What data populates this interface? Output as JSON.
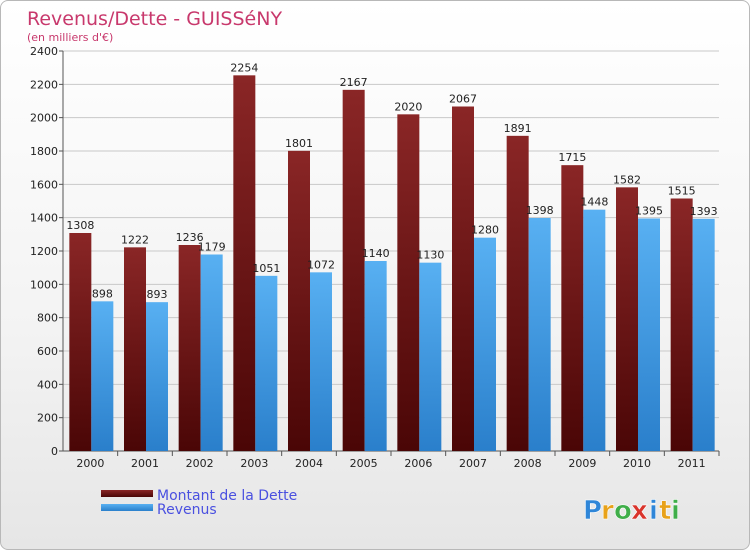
{
  "chart_data": {
    "type": "bar",
    "title": "Revenus/Dette - GUISSéNY",
    "subtitle": "(en milliers d'€)",
    "categories": [
      "2000",
      "2001",
      "2002",
      "2003",
      "2004",
      "2005",
      "2006",
      "2007",
      "2008",
      "2009",
      "2010",
      "2011"
    ],
    "series": [
      {
        "name": "Montant de la Dette",
        "color": "#7a1a1a",
        "values": [
          1308,
          1222,
          1236,
          2254,
          1801,
          2167,
          2020,
          2067,
          1891,
          1715,
          1582,
          1515
        ]
      },
      {
        "name": "Revenus",
        "color": "#3d9be9",
        "values": [
          898,
          893,
          1179,
          1051,
          1072,
          1140,
          1130,
          1280,
          1398,
          1448,
          1395,
          1393
        ]
      }
    ],
    "ylim": [
      0,
      2400
    ],
    "yticks": [
      0,
      200,
      400,
      600,
      800,
      1000,
      1200,
      1400,
      1600,
      1800,
      2000,
      2200,
      2400
    ],
    "grid": true,
    "legend_position": "bottom-left"
  },
  "logo": {
    "text": "Proxiti",
    "letters": [
      {
        "ch": "P",
        "color": "#2f86d8"
      },
      {
        "ch": "r",
        "color": "#e8a21a"
      },
      {
        "ch": "o",
        "color": "#3fae49"
      },
      {
        "ch": "x",
        "color": "#d9342b"
      },
      {
        "ch": "i",
        "color": "#2f86d8"
      },
      {
        "ch": "t",
        "color": "#e8a21a"
      },
      {
        "ch": "i",
        "color": "#3fae49"
      }
    ]
  }
}
